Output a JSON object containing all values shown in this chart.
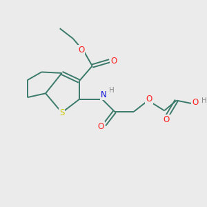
{
  "background_color": "#ebebeb",
  "atom_colors": {
    "C": "#3a7a6a",
    "O": "#ff2020",
    "N": "#1010dd",
    "S": "#cccc00",
    "H": "#888888"
  },
  "bond_color": "#3a7a6a",
  "figsize": [
    3.0,
    3.0
  ],
  "dpi": 100
}
